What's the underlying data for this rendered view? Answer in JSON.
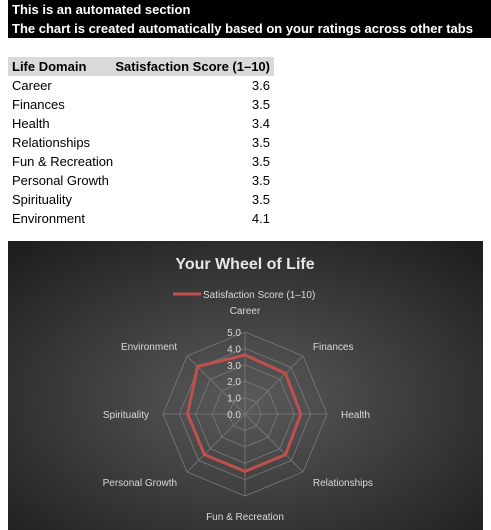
{
  "banner": {
    "line1": "This is an automated section",
    "line2": "The chart is created automatically based on your ratings across other tabs"
  },
  "table": {
    "headers": [
      "Life Domain",
      "Satisfaction Score (1–10)"
    ],
    "rows": [
      {
        "domain": "Career",
        "score": "3.6"
      },
      {
        "domain": "Finances",
        "score": "3.5"
      },
      {
        "domain": "Health",
        "score": "3.4"
      },
      {
        "domain": "Relationships",
        "score": "3.5"
      },
      {
        "domain": "Fun & Recreation",
        "score": "3.5"
      },
      {
        "domain": "Personal Growth",
        "score": "3.5"
      },
      {
        "domain": "Spirituality",
        "score": "3.5"
      },
      {
        "domain": "Environment",
        "score": "4.1"
      }
    ]
  },
  "chart_data": {
    "type": "radar",
    "title": "Your Wheel of Life",
    "categories": [
      "Career",
      "Finances",
      "Health",
      "Relationships",
      "Fun & Recreation",
      "Personal Growth",
      "Spirituality",
      "Environment"
    ],
    "series": [
      {
        "name": "Satisfaction Score (1–10)",
        "values": [
          3.6,
          3.5,
          3.4,
          3.5,
          3.5,
          3.5,
          3.5,
          4.1
        ]
      }
    ],
    "rlim": [
      0,
      5
    ],
    "ticks": [
      "0.0",
      "1.0",
      "2.0",
      "3.0",
      "4.0",
      "5.0"
    ],
    "legend": "top",
    "colors": {
      "series": "#c0504d",
      "background_center": "#5a5a5a",
      "background_edge": "#1f1f1f",
      "grid": "#7a7a7a",
      "text": "#d9d9d9",
      "title": "#e6e6e6"
    }
  }
}
